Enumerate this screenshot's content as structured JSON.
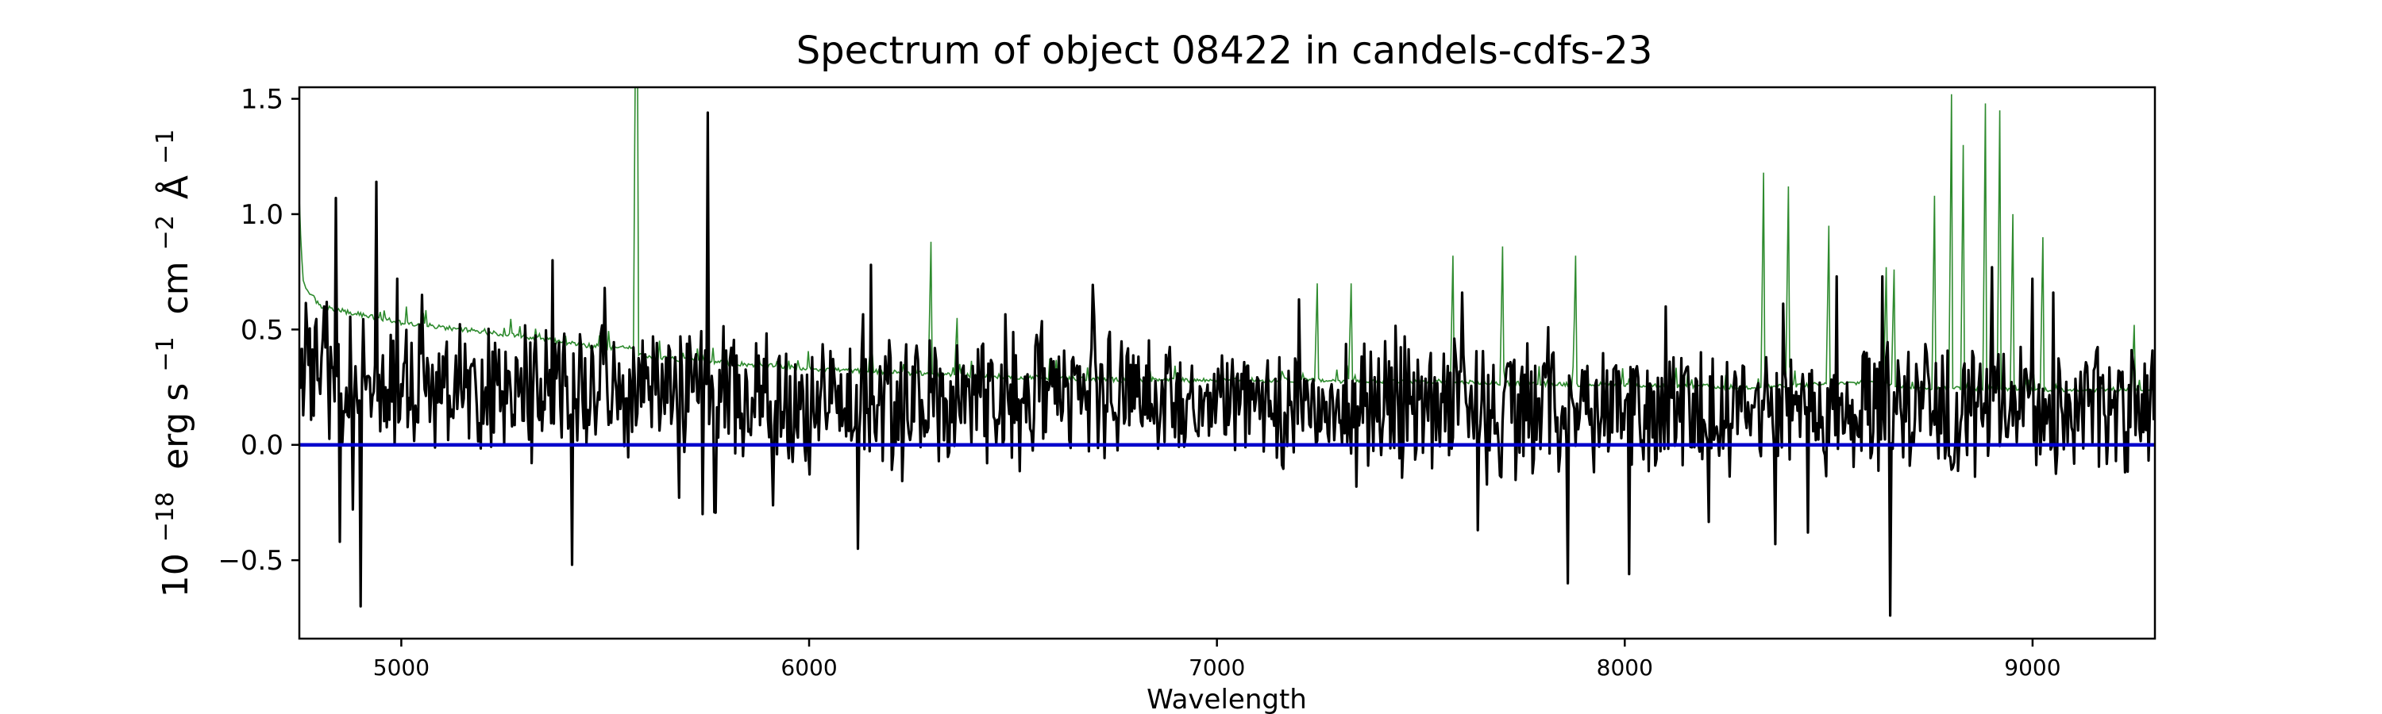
{
  "chart_data": {
    "type": "line",
    "title": "Spectrum of object 08422 in candels-cdfs-23",
    "xlabel": "Wavelength",
    "ylabel": {
      "base": "10",
      "base_exp": "−18",
      "erg": "erg s",
      "erg_exp": "−1",
      "cm": "cm",
      "cm_exp": "−2",
      "ang": "Å",
      "ang_exp": "−1"
    },
    "xlim": [
      4750,
      9300
    ],
    "ylim": [
      -0.84,
      1.55
    ],
    "xticks": [
      5000,
      6000,
      7000,
      8000,
      9000
    ],
    "xtick_labels": [
      "5000",
      "6000",
      "7000",
      "8000",
      "9000"
    ],
    "yticks": [
      -0.5,
      0.0,
      0.5,
      1.0,
      1.5
    ],
    "ytick_labels": [
      "−0.5",
      "0.0",
      "0.5",
      "1.0",
      "1.5"
    ],
    "grid": false,
    "series": [
      {
        "role": "noise",
        "color": "#2e8b2e",
        "anchors": [
          [
            4750,
            1.0
          ],
          [
            4760,
            0.7
          ],
          [
            4800,
            0.6
          ],
          [
            5000,
            0.53
          ],
          [
            5300,
            0.47
          ],
          [
            5500,
            0.42
          ],
          [
            5560,
            0.42
          ],
          [
            5600,
            0.38
          ],
          [
            6000,
            0.33
          ],
          [
            6400,
            0.3
          ],
          [
            6800,
            0.28
          ],
          [
            7200,
            0.28
          ],
          [
            7600,
            0.27
          ],
          [
            8000,
            0.26
          ],
          [
            8300,
            0.25
          ],
          [
            8600,
            0.27
          ],
          [
            8700,
            0.25
          ],
          [
            9000,
            0.24
          ],
          [
            9300,
            0.24
          ]
        ],
        "peaks": [
          [
            5575,
            2.2
          ],
          [
            5578,
            1.9
          ],
          [
            6300,
            0.88
          ],
          [
            6364,
            0.55
          ],
          [
            7245,
            0.7
          ],
          [
            7330,
            0.7
          ],
          [
            7580,
            0.82
          ],
          [
            7700,
            0.86
          ],
          [
            7880,
            0.82
          ],
          [
            8340,
            1.18
          ],
          [
            8400,
            1.12
          ],
          [
            8500,
            0.95
          ],
          [
            8640,
            0.77
          ],
          [
            8660,
            0.76
          ],
          [
            8760,
            1.08
          ],
          [
            8800,
            1.52
          ],
          [
            8830,
            1.3
          ],
          [
            8885,
            1.48
          ],
          [
            8920,
            1.45
          ],
          [
            8950,
            1.0
          ],
          [
            9025,
            0.9
          ],
          [
            9250,
            0.52
          ]
        ]
      },
      {
        "role": "flux",
        "color": "#000000",
        "baseline": [
          [
            4750,
            0.35
          ],
          [
            5000,
            0.25
          ],
          [
            6000,
            0.2
          ],
          [
            7000,
            0.2
          ],
          [
            8000,
            0.16
          ],
          [
            9000,
            0.15
          ],
          [
            9300,
            0.15
          ]
        ],
        "peaks": [
          [
            4810,
            0.6
          ],
          [
            4840,
            1.07
          ],
          [
            4940,
            1.14
          ],
          [
            4990,
            0.72
          ],
          [
            5050,
            0.65
          ],
          [
            5370,
            0.8
          ],
          [
            5500,
            0.68
          ],
          [
            5750,
            1.44
          ],
          [
            5740,
            0.72
          ],
          [
            6150,
            0.78
          ],
          [
            6700,
            0.56
          ],
          [
            7200,
            0.63
          ],
          [
            7600,
            0.66
          ],
          [
            8100,
            0.6
          ],
          [
            8520,
            0.73
          ],
          [
            8630,
            0.73
          ],
          [
            8900,
            0.77
          ],
          [
            9000,
            0.72
          ],
          [
            9050,
            0.66
          ]
        ],
        "troughs": [
          [
            4850,
            -0.42
          ],
          [
            4880,
            -0.28
          ],
          [
            4900,
            -0.7
          ],
          [
            5420,
            -0.52
          ],
          [
            5740,
            -0.3
          ],
          [
            6120,
            -0.45
          ],
          [
            7640,
            -0.37
          ],
          [
            7860,
            -0.6
          ],
          [
            8010,
            -0.56
          ],
          [
            8370,
            -0.43
          ],
          [
            8450,
            -0.38
          ],
          [
            8650,
            -0.74
          ]
        ]
      },
      {
        "role": "zero",
        "color": "#0000cc",
        "x": [
          4750,
          9300
        ],
        "y": [
          0.0,
          0.0
        ]
      }
    ]
  }
}
